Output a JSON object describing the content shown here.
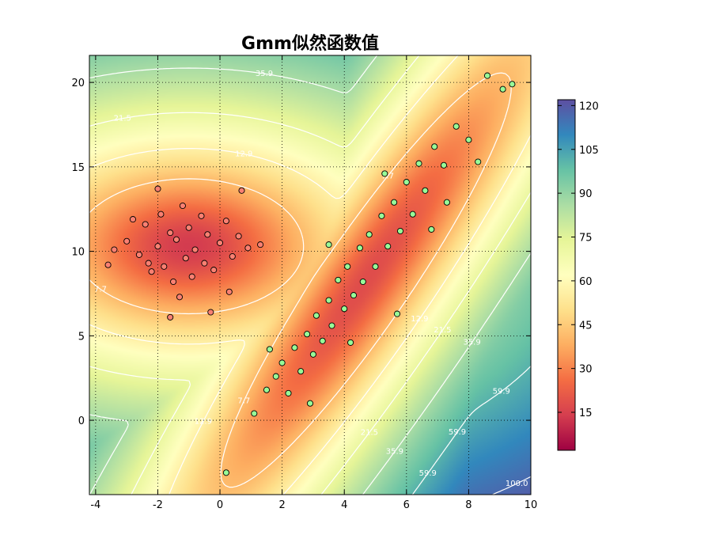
{
  "chart_data": {
    "type": "scatter",
    "title": "Gmm似然函数值",
    "xlabel": "",
    "ylabel": "",
    "xlim": [
      -4.2,
      10.0
    ],
    "ylim": [
      -4.4,
      21.6
    ],
    "x_ticks": [
      -4,
      -2,
      0,
      2,
      4,
      6,
      8,
      10
    ],
    "y_ticks": [
      0,
      5,
      10,
      15,
      20
    ],
    "grid": true,
    "background": "heatmap of negative log-likelihood, Spectral colormap",
    "colorbar": {
      "min": 2,
      "max": 122,
      "ticks": [
        15,
        30,
        45,
        60,
        75,
        90,
        105,
        120
      ],
      "colors": [
        "#9e0142",
        "#d53e4f",
        "#f46d43",
        "#fdae61",
        "#fee08b",
        "#ffffbf",
        "#e6f598",
        "#abdda4",
        "#66c2a5",
        "#3288bd",
        "#5e4fa2"
      ]
    },
    "contour_levels": [
      "2.6",
      "7.7",
      "12.9",
      "21.5",
      "35.9",
      "59.9",
      "100.0"
    ],
    "series": [
      {
        "color": "#fa8072",
        "distribution": {
          "mean": [
            -1.0,
            10.3
          ],
          "sd": [
            1.2,
            1.3
          ],
          "rho": 0.0
        },
        "points": [
          [
            -3.0,
            10.6
          ],
          [
            -2.6,
            9.8
          ],
          [
            -2.4,
            11.6
          ],
          [
            -2.2,
            8.8
          ],
          [
            -2.0,
            10.3
          ],
          [
            -1.9,
            12.2
          ],
          [
            -1.8,
            9.1
          ],
          [
            -1.6,
            11.1
          ],
          [
            -1.5,
            8.2
          ],
          [
            -1.4,
            10.7
          ],
          [
            -1.2,
            12.7
          ],
          [
            -1.1,
            9.6
          ],
          [
            -1.0,
            11.4
          ],
          [
            -0.9,
            8.5
          ],
          [
            -0.8,
            10.1
          ],
          [
            -0.6,
            12.1
          ],
          [
            -0.5,
            9.3
          ],
          [
            -0.4,
            11.0
          ],
          [
            -0.2,
            8.9
          ],
          [
            0.0,
            10.5
          ],
          [
            0.2,
            11.8
          ],
          [
            0.4,
            9.7
          ],
          [
            0.6,
            10.9
          ],
          [
            0.9,
            10.2
          ],
          [
            -3.4,
            10.1
          ],
          [
            -2.8,
            11.9
          ],
          [
            -2.3,
            9.3
          ],
          [
            -1.3,
            7.3
          ],
          [
            -0.3,
            6.4
          ],
          [
            0.7,
            13.6
          ],
          [
            1.3,
            10.4
          ],
          [
            -2.0,
            13.7
          ],
          [
            -1.6,
            6.1
          ],
          [
            0.3,
            7.6
          ],
          [
            -3.6,
            9.2
          ]
        ]
      },
      {
        "color": "#98fb98",
        "distribution": {
          "mean": [
            4.7,
            8.3
          ],
          "sd": [
            1.6,
            4.2
          ],
          "rho": 0.93
        },
        "points": [
          [
            1.1,
            0.4
          ],
          [
            1.5,
            1.8
          ],
          [
            1.8,
            2.6
          ],
          [
            2.0,
            3.4
          ],
          [
            2.2,
            1.6
          ],
          [
            2.4,
            4.3
          ],
          [
            2.6,
            2.9
          ],
          [
            2.8,
            5.1
          ],
          [
            3.0,
            3.9
          ],
          [
            3.1,
            6.2
          ],
          [
            3.3,
            4.7
          ],
          [
            3.5,
            7.1
          ],
          [
            3.6,
            5.6
          ],
          [
            3.8,
            8.3
          ],
          [
            4.0,
            6.6
          ],
          [
            4.1,
            9.1
          ],
          [
            4.3,
            7.4
          ],
          [
            4.5,
            10.2
          ],
          [
            4.6,
            8.2
          ],
          [
            4.8,
            11.0
          ],
          [
            5.0,
            9.1
          ],
          [
            5.2,
            12.1
          ],
          [
            5.4,
            10.3
          ],
          [
            5.6,
            12.9
          ],
          [
            5.8,
            11.2
          ],
          [
            6.0,
            14.1
          ],
          [
            6.2,
            12.2
          ],
          [
            6.4,
            15.2
          ],
          [
            6.6,
            13.6
          ],
          [
            6.9,
            16.2
          ],
          [
            7.2,
            15.1
          ],
          [
            7.6,
            17.4
          ],
          [
            8.0,
            16.6
          ],
          [
            8.6,
            20.4
          ],
          [
            9.1,
            19.6
          ],
          [
            9.4,
            19.9
          ],
          [
            0.2,
            -3.1
          ],
          [
            1.6,
            4.2
          ],
          [
            2.9,
            1.0
          ],
          [
            4.2,
            4.6
          ],
          [
            5.7,
            6.3
          ],
          [
            6.8,
            11.3
          ],
          [
            7.3,
            12.9
          ],
          [
            3.5,
            10.4
          ],
          [
            5.3,
            14.6
          ],
          [
            8.3,
            15.3
          ]
        ]
      }
    ]
  }
}
